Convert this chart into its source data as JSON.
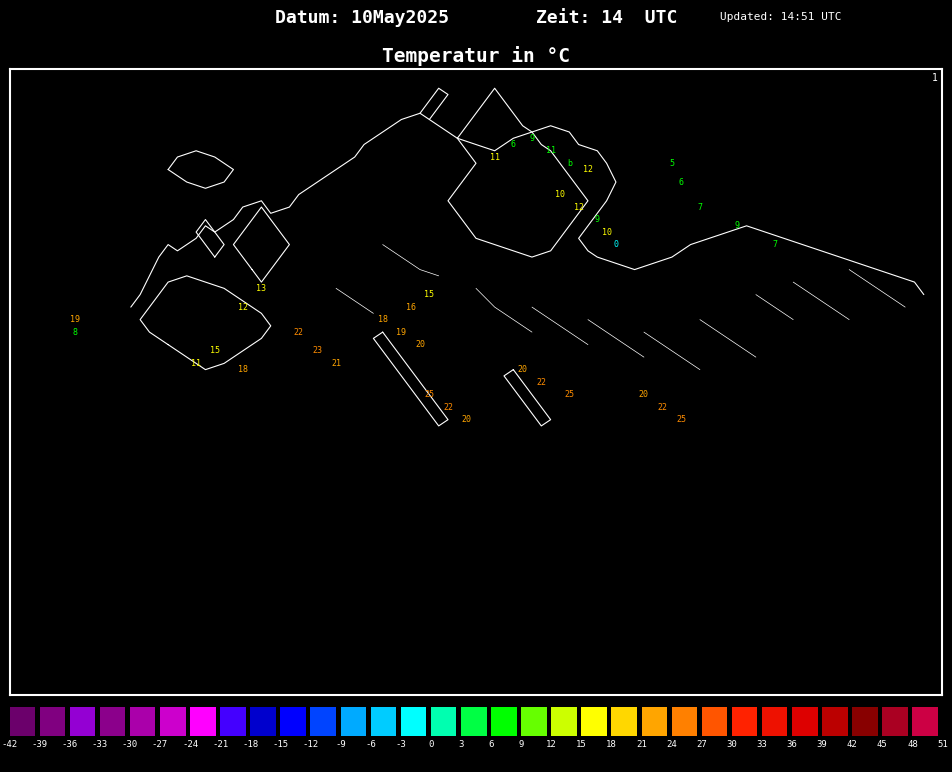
{
  "title_line1": "Datum: 10May2025      Zeit: 14  UTC  Updated: 14:51 UTC",
  "title_line2": "Temperatur in °C",
  "background_color": "#000000",
  "map_border_color": "#ffffff",
  "colorbar_ticks": [
    -42,
    -39,
    -36,
    -33,
    -30,
    -27,
    -24,
    -21,
    -18,
    -15,
    -12,
    -9,
    -6,
    -3,
    0,
    3,
    6,
    9,
    12,
    15,
    18,
    21,
    24,
    27,
    30,
    33,
    36,
    39,
    42,
    45,
    48,
    51
  ],
  "colorbar_colors": [
    "#800080",
    "#800080",
    "#9400D3",
    "#9400D3",
    "#8B008B",
    "#CC00CC",
    "#FF00FF",
    "#FF00FF",
    "#0000CD",
    "#0000FF",
    "#0044FF",
    "#0088FF",
    "#00CCFF",
    "#00FFFF",
    "#00FFCC",
    "#00FF88",
    "#00FF00",
    "#44FF00",
    "#CCFF00",
    "#FFFF00",
    "#FFD700",
    "#FFA500",
    "#FF8C00",
    "#FF6600",
    "#FF4500",
    "#FF2200",
    "#FF0000",
    "#CC0000",
    "#990000",
    "#CC0033",
    "#FF0066"
  ],
  "fig_width": 9.52,
  "fig_height": 7.72,
  "dpi": 100
}
